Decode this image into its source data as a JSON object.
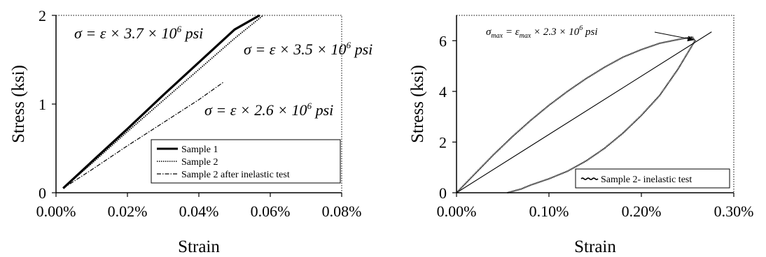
{
  "chart_data": [
    {
      "type": "line",
      "xlabel": "Strain",
      "ylabel": "Stress (ksi)",
      "xlim": [
        0.0,
        0.0008
      ],
      "ylim": [
        0,
        2
      ],
      "x_tick_labels": [
        "0.00%",
        "0.02%",
        "0.04%",
        "0.06%",
        "0.08%"
      ],
      "y_tick_labels": [
        "0",
        "1",
        "2"
      ],
      "grid": false,
      "legend_position": "bottom-right",
      "series": [
        {
          "name": "Sample 1",
          "style": "solid",
          "color": "#000000",
          "x": [
            2e-05,
            0.0001,
            0.0002,
            0.0003,
            0.0004,
            0.0005,
            0.00057
          ],
          "y": [
            0.05,
            0.35,
            0.72,
            1.1,
            1.47,
            1.84,
            2.0
          ]
        },
        {
          "name": "Sample 2",
          "style": "dotted",
          "color": "#000000",
          "x": [
            2e-05,
            0.0001,
            0.0002,
            0.0003,
            0.0004,
            0.0005,
            0.00058
          ],
          "y": [
            0.05,
            0.33,
            0.69,
            1.04,
            1.39,
            1.74,
            2.0
          ]
        },
        {
          "name": "Sample 2 after inelastic test",
          "style": "dashdot",
          "color": "#000000",
          "x": [
            2e-05,
            0.0001,
            0.0002,
            0.0003,
            0.0004,
            0.00047
          ],
          "y": [
            0.05,
            0.26,
            0.53,
            0.79,
            1.05,
            1.25
          ]
        }
      ],
      "annotations": [
        {
          "text": "σ = ε × 3.7 × 10⁶ psi"
        },
        {
          "text": "σ = ε × 3.5 × 10⁶ psi"
        },
        {
          "text": "σ = ε × 2.6 × 10⁶ psi"
        }
      ]
    },
    {
      "type": "line",
      "xlabel": "Strain",
      "ylabel": "Stress (ksi)",
      "xlim": [
        0.0,
        0.003
      ],
      "ylim": [
        0,
        7
      ],
      "x_tick_labels": [
        "0.00%",
        "0.10%",
        "0.20%",
        "0.30%"
      ],
      "y_tick_labels": [
        "0",
        "2",
        "4",
        "6"
      ],
      "grid": false,
      "legend_position": "bottom-right",
      "series": [
        {
          "name": "Sample 2- inelastic test",
          "style": "hysteresis",
          "color": "#000000",
          "x": [
            0.0,
            0.0002,
            0.0004,
            0.0006,
            0.0008,
            0.001,
            0.0012,
            0.0014,
            0.0016,
            0.0018,
            0.002,
            0.0022,
            0.0024,
            0.00255,
            0.00258,
            0.0024,
            0.0022,
            0.002,
            0.0018,
            0.0016,
            0.0014,
            0.0012,
            0.001,
            0.0008,
            0.0007,
            0.0006,
            0.00055
          ],
          "y": [
            0.0,
            0.75,
            1.5,
            2.2,
            2.85,
            3.45,
            4.0,
            4.5,
            4.95,
            5.35,
            5.65,
            5.9,
            6.05,
            6.15,
            6.0,
            4.9,
            3.85,
            3.05,
            2.35,
            1.75,
            1.25,
            0.85,
            0.55,
            0.3,
            0.15,
            0.05,
            0.0
          ]
        },
        {
          "name": "",
          "style": "solid-thin",
          "color": "#000000",
          "x": [
            0.0,
            0.00276
          ],
          "y": [
            0.0,
            6.35
          ]
        }
      ],
      "annotations": [
        {
          "text": "σmax = εmax × 2.3 × 10⁶ psi"
        }
      ]
    }
  ]
}
